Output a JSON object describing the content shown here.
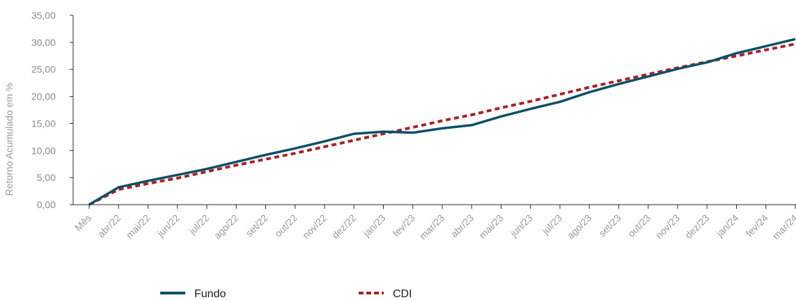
{
  "chart_data": {
    "type": "line",
    "ylabel": "Retorno Acumulado em %",
    "xlabel": "",
    "ylim": [
      0,
      35
    ],
    "y_ticks": [
      "0,00",
      "5,00",
      "10,00",
      "15,00",
      "20,00",
      "25,00",
      "30,00",
      "35,00"
    ],
    "y_tick_values": [
      0,
      5,
      10,
      15,
      20,
      25,
      30,
      35
    ],
    "x": [
      "Mês",
      "abr/22",
      "mai/22",
      "jun/22",
      "jul/22",
      "ago/22",
      "set/22",
      "out/22",
      "nov/22",
      "dez/22",
      "jan/23",
      "fev/23",
      "mar/23",
      "abr/23",
      "mai/23",
      "jun/23",
      "jul/23",
      "ago/23",
      "set/23",
      "out/23",
      "nov/23",
      "dez/23",
      "jan/24",
      "fev/24",
      "mar/24"
    ],
    "grid": false,
    "legend_position": "bottom",
    "series": [
      {
        "name": "Fundo",
        "color": "#0d4f66",
        "style": "solid",
        "values": [
          0.0,
          3.2,
          4.4,
          5.5,
          6.6,
          7.9,
          9.2,
          10.4,
          11.7,
          13.1,
          13.5,
          13.3,
          14.1,
          14.7,
          16.3,
          17.7,
          19.0,
          20.8,
          22.3,
          23.7,
          25.1,
          26.3,
          28.0,
          29.3,
          30.6
        ]
      },
      {
        "name": "CDI",
        "color": "#a3242a",
        "style": "dashed",
        "values": [
          0.0,
          2.8,
          3.9,
          4.9,
          6.1,
          7.3,
          8.4,
          9.5,
          10.7,
          11.9,
          13.1,
          14.3,
          15.5,
          16.6,
          17.9,
          19.1,
          20.4,
          21.7,
          22.9,
          24.1,
          25.3,
          26.4,
          27.5,
          28.6,
          29.7
        ]
      }
    ]
  }
}
